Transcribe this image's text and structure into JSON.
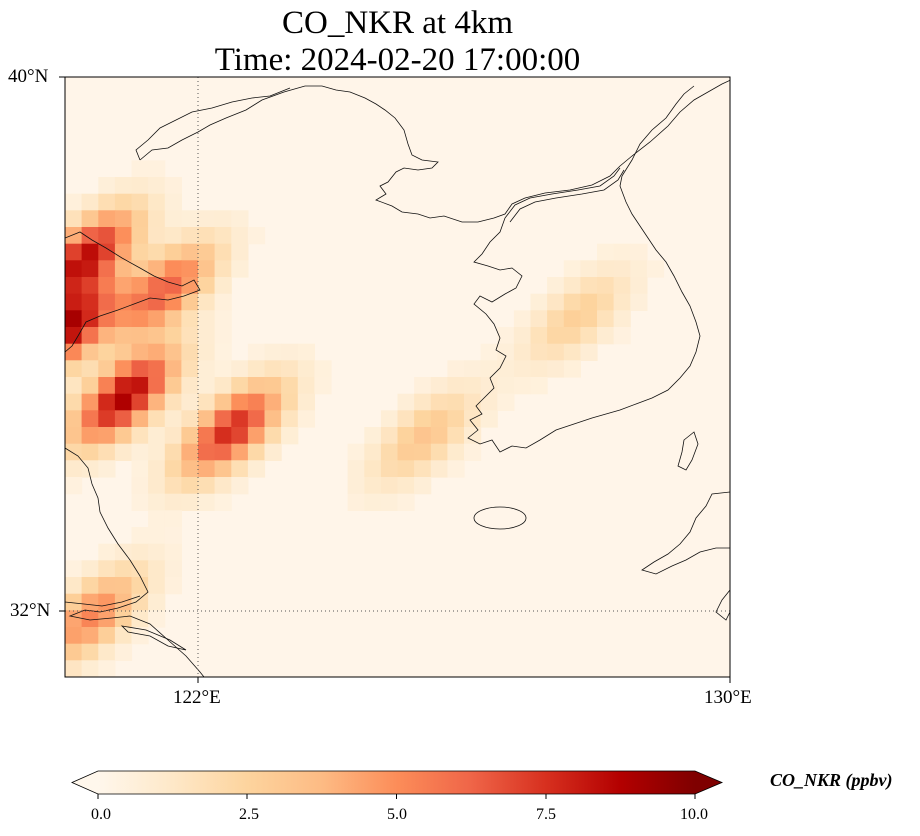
{
  "title_line1": "CO_NKR at 4km",
  "title_line2": "Time: 2024-02-20 17:00:00",
  "map": {
    "lon_range": [
      120,
      130
    ],
    "lat_range": [
      31,
      40
    ],
    "lat_ticks": [
      {
        "value": 40,
        "label": "40°N"
      },
      {
        "value": 32,
        "label": "32°N"
      }
    ],
    "lon_ticks": [
      {
        "value": 122,
        "label": "122°E"
      },
      {
        "value": 130,
        "label": "130°E"
      }
    ],
    "gridlines": {
      "lat": [
        32
      ],
      "lon": [
        122
      ],
      "style": "dotted"
    },
    "field": "CO_NKR",
    "plumes": [
      {
        "lat": 37.3,
        "lon": 120.3,
        "peak": 8.0
      },
      {
        "lat": 36.8,
        "lon": 121.5,
        "peak": 6.0
      },
      {
        "lat": 36.2,
        "lon": 120.0,
        "peak": 8.5
      },
      {
        "lat": 35.2,
        "lon": 120.9,
        "peak": 8.7
      },
      {
        "lat": 34.7,
        "lon": 122.5,
        "peak": 7.5
      },
      {
        "lat": 34.6,
        "lon": 125.4,
        "peak": 3.0
      },
      {
        "lat": 36.4,
        "lon": 127.7,
        "peak": 2.5
      },
      {
        "lat": 31.9,
        "lon": 120.4,
        "peak": 5.0
      }
    ]
  },
  "colorbar": {
    "label": "CO_NKR (ppbv)",
    "min": 0.0,
    "max": 10.0,
    "ticks": [
      "0.0",
      "2.5",
      "5.0",
      "7.5",
      "10.0"
    ],
    "extend": "both",
    "colormap": "OrRd",
    "colors": [
      "#fff7ec",
      "#fee8c8",
      "#fdd49e",
      "#fdbb84",
      "#fc8d59",
      "#ef6548",
      "#d7301f",
      "#b30000",
      "#7f0000"
    ]
  }
}
